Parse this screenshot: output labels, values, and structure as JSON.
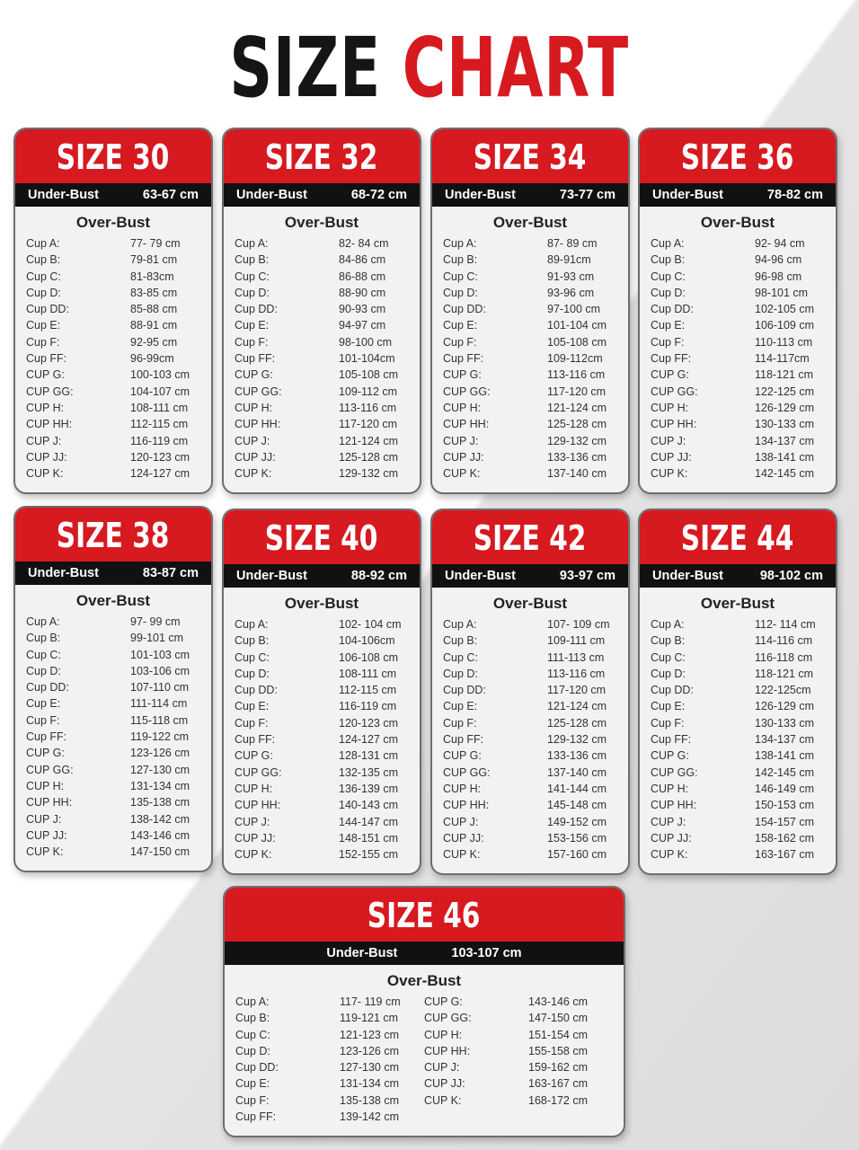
{
  "title": {
    "word1": "SIZE",
    "word2": "CHART"
  },
  "colors": {
    "accent": "#d71920",
    "band": "#111111"
  },
  "cards": [
    {
      "title": "SIZE 30",
      "under_label": "Under-Bust",
      "under_value": "63-67 cm",
      "over_label": "Over-Bust",
      "rows": [
        [
          "Cup A:",
          "77- 79 cm"
        ],
        [
          "Cup B:",
          "79-81 cm"
        ],
        [
          "Cup C:",
          "81-83cm"
        ],
        [
          "Cup D:",
          "83-85 cm"
        ],
        [
          "Cup DD:",
          "85-88 cm"
        ],
        [
          "Cup E:",
          "88-91 cm"
        ],
        [
          "Cup F:",
          "92-95 cm"
        ],
        [
          "Cup FF:",
          "96-99cm"
        ],
        [
          "CUP G:",
          "100-103 cm"
        ],
        [
          "CUP GG:",
          "104-107 cm"
        ],
        [
          "CUP H:",
          "108-111 cm"
        ],
        [
          "CUP HH:",
          "112-115 cm"
        ],
        [
          "CUP J:",
          "116-119 cm"
        ],
        [
          "CUP JJ:",
          "120-123 cm"
        ],
        [
          "CUP K:",
          "124-127 cm"
        ]
      ]
    },
    {
      "title": "SIZE 32",
      "under_label": "Under-Bust",
      "under_value": "68-72 cm",
      "over_label": "Over-Bust",
      "rows": [
        [
          "Cup A:",
          "82- 84 cm"
        ],
        [
          "Cup B:",
          "84-86 cm"
        ],
        [
          "Cup C:",
          "86-88 cm"
        ],
        [
          "Cup D:",
          "88-90 cm"
        ],
        [
          "Cup DD:",
          "90-93 cm"
        ],
        [
          "Cup E:",
          "94-97 cm"
        ],
        [
          "Cup F:",
          "98-100 cm"
        ],
        [
          "Cup FF:",
          "101-104cm"
        ],
        [
          "CUP G:",
          "105-108 cm"
        ],
        [
          "CUP GG:",
          "109-112 cm"
        ],
        [
          "CUP H:",
          "113-116 cm"
        ],
        [
          "CUP HH:",
          "117-120 cm"
        ],
        [
          "CUP J:",
          "121-124 cm"
        ],
        [
          "CUP JJ:",
          "125-128 cm"
        ],
        [
          "CUP K:",
          "129-132 cm"
        ]
      ]
    },
    {
      "title": "SIZE 34",
      "under_label": "Under-Bust",
      "under_value": "73-77 cm",
      "over_label": "Over-Bust",
      "rows": [
        [
          "Cup A:",
          "87- 89 cm"
        ],
        [
          "Cup B:",
          "89-91cm"
        ],
        [
          "Cup C:",
          "91-93 cm"
        ],
        [
          "Cup D:",
          "93-96 cm"
        ],
        [
          "Cup DD:",
          "97-100 cm"
        ],
        [
          "Cup E:",
          "101-104 cm"
        ],
        [
          "Cup F:",
          "105-108 cm"
        ],
        [
          "Cup FF:",
          "109-112cm"
        ],
        [
          "CUP G:",
          "113-116 cm"
        ],
        [
          "CUP GG:",
          "117-120 cm"
        ],
        [
          "CUP H:",
          "121-124 cm"
        ],
        [
          "CUP HH:",
          "125-128 cm"
        ],
        [
          "CUP J:",
          "129-132 cm"
        ],
        [
          "CUP JJ:",
          "133-136 cm"
        ],
        [
          "CUP K:",
          "137-140 cm"
        ]
      ]
    },
    {
      "title": "SIZE 36",
      "under_label": "Under-Bust",
      "under_value": "78-82 cm",
      "over_label": "Over-Bust",
      "rows": [
        [
          "Cup A:",
          "92- 94 cm"
        ],
        [
          "Cup B:",
          "94-96 cm"
        ],
        [
          "Cup C:",
          "96-98 cm"
        ],
        [
          "Cup D:",
          "98-101 cm"
        ],
        [
          "Cup DD:",
          "102-105 cm"
        ],
        [
          "Cup E:",
          "106-109 cm"
        ],
        [
          "Cup F:",
          "110-113 cm"
        ],
        [
          "Cup FF:",
          "114-117cm"
        ],
        [
          "CUP G:",
          "118-121 cm"
        ],
        [
          "CUP GG:",
          "122-125 cm"
        ],
        [
          "CUP H:",
          "126-129 cm"
        ],
        [
          "CUP HH:",
          "130-133 cm"
        ],
        [
          "CUP J:",
          "134-137 cm"
        ],
        [
          "CUP JJ:",
          "138-141 cm"
        ],
        [
          "CUP K:",
          "142-145 cm"
        ]
      ]
    },
    {
      "title": "SIZE 38",
      "under_label": "Under-Bust",
      "under_value": "83-87 cm",
      "over_label": "Over-Bust",
      "rows": [
        [
          "Cup A:",
          "97- 99 cm"
        ],
        [
          "Cup B:",
          "99-101 cm"
        ],
        [
          "Cup C:",
          "101-103 cm"
        ],
        [
          "Cup D:",
          "103-106 cm"
        ],
        [
          "Cup DD:",
          "107-110 cm"
        ],
        [
          "Cup E:",
          "111-114 cm"
        ],
        [
          "Cup F:",
          "115-118 cm"
        ],
        [
          "Cup FF:",
          "119-122 cm"
        ],
        [
          "CUP G:",
          "123-126 cm"
        ],
        [
          "CUP GG:",
          "127-130 cm"
        ],
        [
          "CUP H:",
          "131-134 cm"
        ],
        [
          "CUP HH:",
          "135-138 cm"
        ],
        [
          "CUP J:",
          "138-142 cm"
        ],
        [
          "CUP JJ:",
          "143-146 cm"
        ],
        [
          "CUP K:",
          "147-150 cm"
        ]
      ]
    },
    {
      "title": "SIZE 40",
      "under_label": "Under-Bust",
      "under_value": "88-92 cm",
      "over_label": "Over-Bust",
      "rows": [
        [
          "Cup A:",
          "102- 104 cm"
        ],
        [
          "Cup B:",
          "104-106cm"
        ],
        [
          "Cup C:",
          "106-108 cm"
        ],
        [
          "Cup D:",
          "108-111 cm"
        ],
        [
          "Cup DD:",
          "112-115 cm"
        ],
        [
          "Cup E:",
          "116-119 cm"
        ],
        [
          "Cup F:",
          "120-123 cm"
        ],
        [
          "Cup FF:",
          "124-127 cm"
        ],
        [
          "CUP G:",
          "128-131 cm"
        ],
        [
          "CUP GG:",
          "132-135 cm"
        ],
        [
          "CUP H:",
          "136-139 cm"
        ],
        [
          "CUP HH:",
          "140-143 cm"
        ],
        [
          "CUP J:",
          "144-147 cm"
        ],
        [
          "CUP JJ:",
          "148-151 cm"
        ],
        [
          "CUP K:",
          "152-155 cm"
        ]
      ]
    },
    {
      "title": "SIZE 42",
      "under_label": "Under-Bust",
      "under_value": "93-97 cm",
      "over_label": "Over-Bust",
      "rows": [
        [
          "Cup A:",
          "107- 109 cm"
        ],
        [
          "Cup B:",
          "109-111 cm"
        ],
        [
          "Cup C:",
          "111-113 cm"
        ],
        [
          "Cup D:",
          "113-116 cm"
        ],
        [
          "Cup DD:",
          "117-120 cm"
        ],
        [
          "Cup E:",
          "121-124 cm"
        ],
        [
          "Cup F:",
          "125-128 cm"
        ],
        [
          "Cup FF:",
          "129-132 cm"
        ],
        [
          "CUP G:",
          "133-136 cm"
        ],
        [
          "CUP GG:",
          "137-140 cm"
        ],
        [
          "CUP H:",
          "141-144 cm"
        ],
        [
          "CUP HH:",
          "145-148 cm"
        ],
        [
          "CUP J:",
          "149-152 cm"
        ],
        [
          "CUP JJ:",
          "153-156 cm"
        ],
        [
          "CUP K:",
          "157-160 cm"
        ]
      ]
    },
    {
      "title": "SIZE 44",
      "under_label": "Under-Bust",
      "under_value": "98-102 cm",
      "over_label": "Over-Bust",
      "rows": [
        [
          "Cup A:",
          "112- 114 cm"
        ],
        [
          "Cup B:",
          "114-116 cm"
        ],
        [
          "Cup C:",
          "116-118 cm"
        ],
        [
          "Cup D:",
          "118-121 cm"
        ],
        [
          "Cup DD:",
          "122-125cm"
        ],
        [
          "Cup E:",
          "126-129 cm"
        ],
        [
          "Cup F:",
          "130-133 cm"
        ],
        [
          "Cup FF:",
          "134-137 cm"
        ],
        [
          "CUP G:",
          "138-141 cm"
        ],
        [
          "CUP GG:",
          "142-145 cm"
        ],
        [
          "CUP H:",
          "146-149 cm"
        ],
        [
          "CUP HH:",
          "150-153 cm"
        ],
        [
          "CUP J:",
          "154-157 cm"
        ],
        [
          "CUP JJ:",
          "158-162 cm"
        ],
        [
          "CUP K:",
          "163-167 cm"
        ]
      ]
    },
    {
      "title": "SIZE 46",
      "under_label": "Under-Bust",
      "under_value": "103-107 cm",
      "over_label": "Over-Bust",
      "rows": [
        [
          "Cup A:",
          "117- 119 cm"
        ],
        [
          "Cup B:",
          "119-121 cm"
        ],
        [
          "Cup C:",
          "121-123 cm"
        ],
        [
          "Cup D:",
          "123-126 cm"
        ],
        [
          "Cup DD:",
          "127-130 cm"
        ],
        [
          "Cup E:",
          "131-134 cm"
        ],
        [
          "Cup F:",
          "135-138 cm"
        ],
        [
          "Cup FF:",
          "139-142 cm"
        ],
        [
          "CUP G:",
          "143-146 cm"
        ],
        [
          "CUP GG:",
          "147-150 cm"
        ],
        [
          "CUP H:",
          "151-154 cm"
        ],
        [
          "CUP HH:",
          "155-158 cm"
        ],
        [
          "CUP J:",
          "159-162 cm"
        ],
        [
          "CUP JJ:",
          "163-167 cm"
        ],
        [
          "CUP K:",
          "168-172 cm"
        ]
      ]
    }
  ]
}
